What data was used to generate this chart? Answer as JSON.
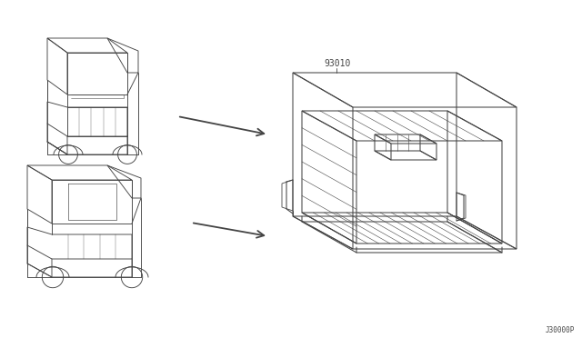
{
  "bg_color": "#ffffff",
  "line_color": "#444444",
  "part_number": "93010",
  "diagram_code": "J30000P",
  "figsize": [
    6.4,
    3.72
  ],
  "dpi": 100
}
